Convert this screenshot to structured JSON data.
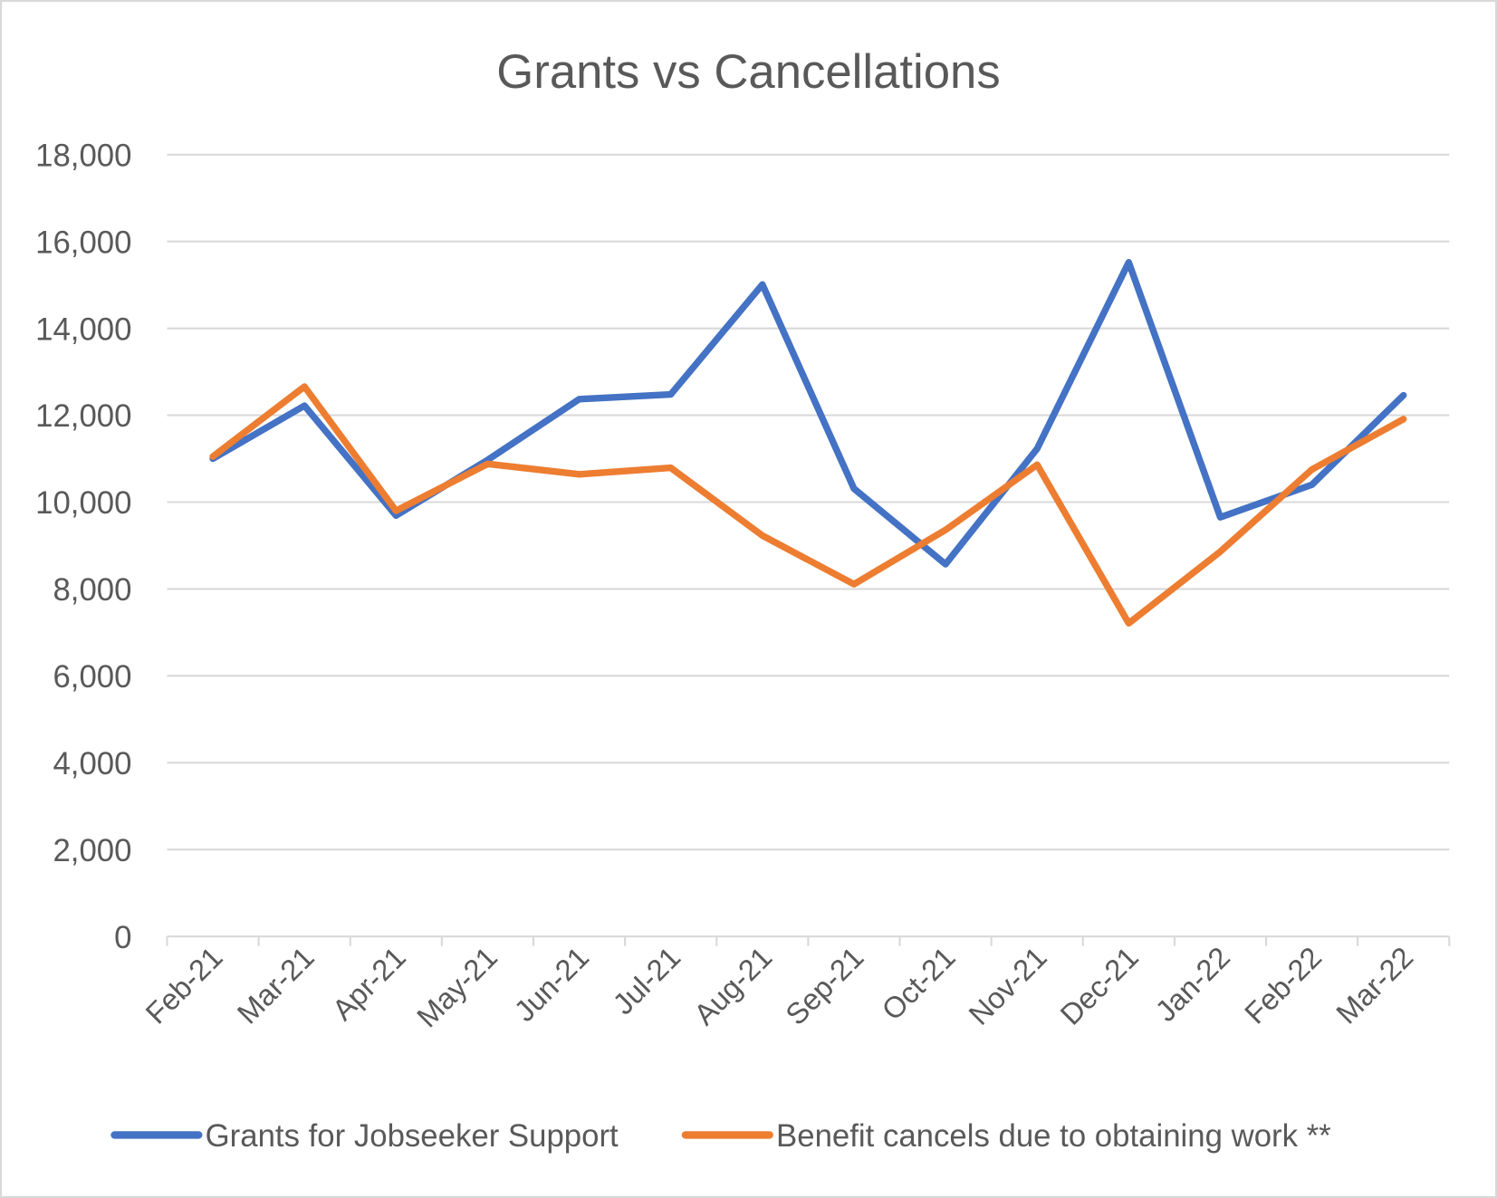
{
  "chart_data": {
    "type": "line",
    "title": "Grants vs Cancellations",
    "xlabel": "",
    "ylabel": "",
    "ylim": [
      0,
      18000
    ],
    "yticks": [
      0,
      2000,
      4000,
      6000,
      8000,
      10000,
      12000,
      14000,
      16000,
      18000
    ],
    "ytick_labels": [
      "0",
      "2,000",
      "4,000",
      "6,000",
      "8,000",
      "10,000",
      "12,000",
      "14,000",
      "16,000",
      "18,000"
    ],
    "grid": true,
    "legend_position": "bottom",
    "categories": [
      "Feb-21",
      "Mar-21",
      "Apr-21",
      "May-21",
      "Jun-21",
      "Jul-21",
      "Aug-21",
      "Sep-21",
      "Oct-21",
      "Nov-21",
      "Dec-21",
      "Jan-22",
      "Feb-22",
      "Mar-22"
    ],
    "series": [
      {
        "name": "Grants for Jobseeker Support",
        "color": "#4472C4",
        "values": [
          11000,
          12220,
          9690,
          10970,
          12370,
          12480,
          15010,
          10310,
          8570,
          11230,
          15520,
          9650,
          10400,
          12460
        ]
      },
      {
        "name": "Benefit cancels due to obtaining work **",
        "color": "#ED7D31",
        "values": [
          11050,
          12660,
          9800,
          10880,
          10640,
          10790,
          9230,
          8110,
          9360,
          10860,
          7210,
          8860,
          10750,
          11910
        ]
      }
    ]
  }
}
